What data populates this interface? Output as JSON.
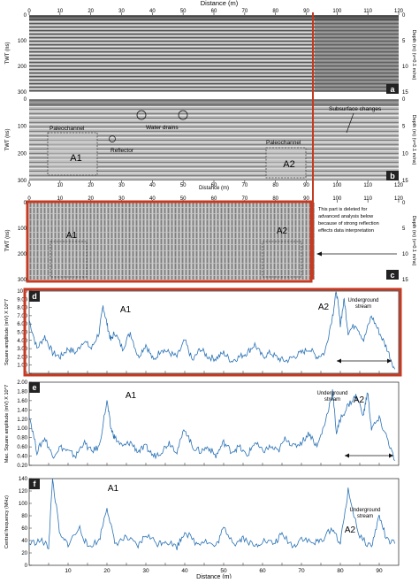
{
  "panel_labels": [
    "a",
    "b",
    "c",
    "d",
    "e",
    "f"
  ],
  "radargram": {
    "distance_label": "Distance (m)",
    "twt_label": "TWT (ns)",
    "depth_label": "Depth (m) (v=0.1 m/ns)",
    "x_ticks_top": [
      "0",
      "10",
      "20",
      "30",
      "40",
      "50",
      "60",
      "70",
      "80",
      "90",
      "100",
      "110",
      "120"
    ],
    "twt_ticks": [
      "0",
      "100",
      "200",
      "300"
    ],
    "depth_ticks": [
      "0",
      "5",
      "10",
      "15"
    ],
    "annotations_b": {
      "paleochannel_left": "Paleochannel",
      "paleochannel_right": "Paleochannel",
      "water_drains": "Water drains",
      "reflector": "Reflector",
      "subsurface_changes": "Subsurface changes",
      "box_a1": "A1",
      "box_a2": "A2"
    },
    "annotations_c": {
      "note": [
        "This part is deleted for",
        "advanced analysis below",
        "because of strong reflection",
        "effects data interpretation"
      ],
      "box_a1": "A1",
      "box_a2": "A2"
    }
  },
  "chart_data": [
    {
      "panel": "d",
      "type": "line",
      "ylabel": "Square amplitude (mV) X 10^7",
      "xlabel": "",
      "xlim": [
        0,
        95
      ],
      "ylim": [
        0,
        10
      ],
      "y_ticks": [
        "0",
        "1.00",
        "2.00",
        "3.00",
        "4.00",
        "5.00",
        "6.00",
        "7.00",
        "8.00",
        "9.00",
        "10.0"
      ],
      "annotations": {
        "a1": "A1",
        "a2": "A2",
        "stream": [
          "Underground",
          "stream"
        ]
      },
      "series": [
        {
          "x": [
            0,
            2,
            4,
            6,
            8,
            10,
            12,
            14,
            16,
            18,
            19,
            20,
            21,
            22,
            24,
            26,
            28,
            30,
            32,
            34,
            36,
            38,
            40,
            42,
            44,
            46,
            48,
            50,
            52,
            54,
            56,
            58,
            60,
            62,
            64,
            66,
            68,
            70,
            72,
            74,
            76,
            78,
            79,
            80,
            81,
            82,
            84,
            86,
            88,
            90,
            92,
            94
          ],
          "values": [
            6.5,
            3,
            4.5,
            2.5,
            2,
            3,
            2.5,
            4,
            3,
            5,
            8.2,
            6,
            4,
            5,
            3,
            5,
            2,
            3.5,
            1.5,
            3,
            2.5,
            2,
            4,
            1.5,
            3,
            2,
            1.8,
            2.5,
            1.5,
            2,
            2.5,
            3.5,
            2,
            2.5,
            1.8,
            1.5,
            2,
            2.5,
            3,
            2,
            2.5,
            7,
            10,
            6,
            9,
            5,
            6,
            4,
            7,
            5,
            3,
            0.5
          ]
        }
      ]
    },
    {
      "panel": "e",
      "type": "line",
      "ylabel": "Max. Square amplitude (mV) X 10^7",
      "xlabel": "",
      "xlim": [
        0,
        95
      ],
      "ylim": [
        0.2,
        2.0
      ],
      "y_ticks": [
        "0.20",
        "0.40",
        "0.60",
        "0.80",
        "1.00",
        "1.20",
        "1.40",
        "1.60",
        "1.80",
        "2.00"
      ],
      "annotations": {
        "a1": "A1",
        "a2": "A2",
        "stream": [
          "Underground",
          "stream"
        ]
      },
      "series": [
        {
          "x": [
            0,
            2,
            4,
            6,
            8,
            10,
            12,
            14,
            16,
            18,
            20,
            21,
            22,
            24,
            26,
            28,
            30,
            32,
            34,
            36,
            38,
            40,
            42,
            44,
            46,
            48,
            50,
            52,
            54,
            56,
            58,
            60,
            62,
            64,
            66,
            68,
            70,
            72,
            74,
            76,
            78,
            79,
            80,
            82,
            84,
            86,
            87,
            88,
            90,
            92,
            94
          ],
          "values": [
            1.3,
            0.5,
            0.8,
            0.4,
            0.6,
            0.5,
            0.4,
            0.7,
            0.5,
            0.6,
            1.6,
            1.0,
            0.8,
            0.6,
            0.7,
            0.5,
            0.6,
            0.4,
            0.5,
            0.7,
            0.5,
            1.0,
            0.6,
            0.5,
            0.6,
            0.4,
            0.7,
            0.5,
            0.6,
            0.4,
            0.7,
            0.5,
            0.6,
            0.5,
            0.8,
            0.6,
            0.7,
            0.9,
            0.6,
            1.1,
            1.8,
            0.9,
            1.2,
            1.5,
            1.7,
            1.3,
            1.8,
            1.0,
            1.2,
            0.8,
            0.3
          ]
        }
      ]
    },
    {
      "panel": "f",
      "type": "line",
      "ylabel": "Central frequency (MHz)",
      "xlabel": "Distance (m)",
      "xlim": [
        0,
        95
      ],
      "ylim": [
        0,
        140
      ],
      "y_ticks": [
        "0",
        "20",
        "40",
        "60",
        "80",
        "100",
        "120",
        "140"
      ],
      "x_ticks": [
        "10",
        "20",
        "30",
        "40",
        "50",
        "60",
        "70",
        "80",
        "90"
      ],
      "annotations": {
        "a1": "A1",
        "a2": "A2",
        "stream": [
          "Underground",
          "stream"
        ]
      },
      "series": [
        {
          "x": [
            0,
            3,
            5,
            6,
            8,
            10,
            13,
            15,
            18,
            20,
            22,
            25,
            28,
            30,
            33,
            35,
            38,
            40,
            43,
            45,
            48,
            50,
            53,
            55,
            58,
            60,
            63,
            65,
            68,
            70,
            73,
            75,
            78,
            80,
            82,
            85,
            88,
            90,
            92,
            94
          ],
          "values": [
            35,
            40,
            30,
            140,
            45,
            35,
            60,
            30,
            40,
            95,
            35,
            45,
            30,
            50,
            35,
            40,
            30,
            55,
            35,
            40,
            30,
            60,
            35,
            45,
            30,
            40,
            35,
            50,
            30,
            45,
            35,
            40,
            60,
            35,
            120,
            45,
            30,
            80,
            40,
            35
          ]
        }
      ]
    }
  ]
}
